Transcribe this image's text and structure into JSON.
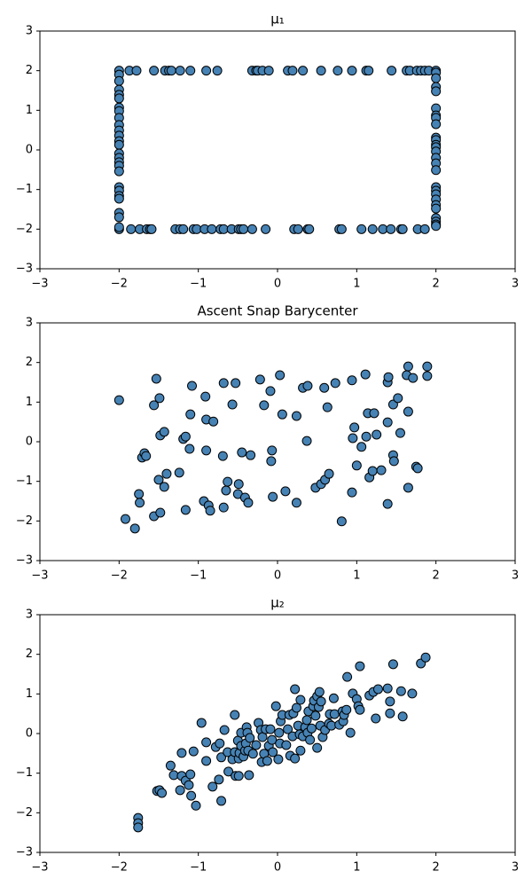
{
  "chart_data": [
    {
      "type": "scatter",
      "title": "μ₁",
      "color": "#4682b4",
      "edgecolor": "#000000",
      "xlim": [
        -3,
        3
      ],
      "ylim": [
        -3,
        3
      ],
      "xticks": [
        {
          "value": -3,
          "label": "−3"
        },
        {
          "value": -2,
          "label": "−2"
        },
        {
          "value": -1,
          "label": "−1"
        },
        0,
        1,
        2,
        3
      ],
      "yticks": [
        {
          "value": -3,
          "label": "−3"
        },
        {
          "value": -2,
          "label": "−2"
        },
        {
          "value": -1,
          "label": "−1"
        },
        0,
        1,
        2,
        3
      ],
      "x": [
        -2.0,
        -1.87,
        -1.78,
        -1.56,
        -1.42,
        -1.37,
        -1.34,
        -1.23,
        -1.1,
        -0.9,
        -0.76,
        -0.32,
        -0.27,
        -0.25,
        -0.19,
        -0.11,
        0.13,
        0.19,
        0.32,
        0.55,
        0.76,
        0.94,
        1.12,
        1.15,
        1.44,
        1.63,
        1.67,
        1.76,
        1.81,
        1.86,
        1.91,
        2.0,
        -2.0,
        -1.85,
        -1.74,
        -1.65,
        -1.61,
        -1.59,
        -1.29,
        -1.23,
        -1.19,
        -1.06,
        -1.02,
        -0.92,
        -0.83,
        -0.72,
        -0.68,
        -0.58,
        -0.49,
        -0.46,
        -0.43,
        -0.32,
        -0.15,
        0.21,
        0.26,
        0.38,
        0.4,
        0.78,
        0.81,
        1.06,
        1.2,
        1.33,
        1.43,
        1.56,
        1.58,
        1.77,
        1.86,
        -2,
        -2,
        -2,
        -2,
        -2,
        -2,
        -2,
        -2,
        -2,
        -2,
        -2,
        -2,
        -2,
        -2,
        -2,
        -2,
        -2,
        -2,
        -2,
        -2,
        -2,
        -2,
        -2,
        -2,
        -2,
        2,
        2,
        2,
        2,
        2,
        2,
        2,
        2,
        2,
        2,
        2,
        2,
        2,
        2,
        2,
        2,
        2,
        2,
        2,
        2,
        2,
        2,
        2,
        2,
        2,
        2
      ],
      "values": [
        2,
        2,
        2,
        2,
        2,
        2,
        2,
        2,
        2,
        2,
        2,
        2,
        2,
        2,
        2,
        2,
        2,
        2,
        2,
        2,
        2,
        2,
        2,
        2,
        2,
        2,
        2,
        2,
        2,
        2,
        2,
        2,
        -2,
        -2,
        -2,
        -2,
        -2,
        -2,
        -2,
        -2,
        -2,
        -2,
        -2,
        -2,
        -2,
        -2,
        -2,
        -2,
        -2,
        -2,
        -2,
        -2,
        -2,
        -2,
        -2,
        -2,
        -2,
        -2,
        -2,
        -2,
        -2,
        -2,
        -2,
        -2,
        -2,
        -2,
        -2,
        1.9,
        1.74,
        1.52,
        1.39,
        1.3,
        1.07,
        0.98,
        0.81,
        0.63,
        0.49,
        0.36,
        0.22,
        0.13,
        -0.09,
        -0.2,
        -0.31,
        -0.4,
        -0.54,
        -0.94,
        -1.03,
        -1.16,
        -1.23,
        -1.59,
        -1.7,
        -1.95,
        1.95,
        1.81,
        1.59,
        1.48,
        1.05,
        0.87,
        0.81,
        0.65,
        0.31,
        0.25,
        0.13,
        0.07,
        -0.04,
        -0.2,
        -0.34,
        -0.51,
        -0.94,
        -1.03,
        -1.12,
        -1.25,
        -1.39,
        -1.48,
        -1.72,
        -1.81,
        -1.88,
        -1.92
      ]
    },
    {
      "type": "scatter",
      "title": "Ascent Snap Barycenter",
      "color": "#4682b4",
      "edgecolor": "#000000",
      "xlim": [
        -3,
        3
      ],
      "ylim": [
        -3,
        3
      ],
      "xticks": [
        {
          "value": -3,
          "label": "−3"
        },
        {
          "value": -2,
          "label": "−2"
        },
        {
          "value": -1,
          "label": "−1"
        },
        0,
        1,
        2,
        3
      ],
      "yticks": [
        {
          "value": -3,
          "label": "−3"
        },
        {
          "value": -2,
          "label": "−2"
        },
        {
          "value": -1,
          "label": "−1"
        },
        0,
        1,
        2,
        3
      ],
      "x": [
        -2.0,
        -1.92,
        -1.8,
        -1.75,
        -1.74,
        -1.71,
        -1.68,
        -1.66,
        -1.56,
        -1.56,
        -1.53,
        -1.5,
        -1.49,
        -1.48,
        -1.48,
        -1.43,
        -1.43,
        -1.4,
        -1.24,
        -1.19,
        -1.16,
        -1.16,
        -1.11,
        -1.1,
        -1.08,
        -0.93,
        -0.91,
        -0.9,
        -0.9,
        -0.87,
        -0.85,
        -0.81,
        -0.69,
        -0.68,
        -0.68,
        -0.65,
        -0.63,
        -0.57,
        -0.53,
        -0.5,
        -0.49,
        -0.45,
        -0.41,
        -0.37,
        -0.34,
        -0.22,
        -0.17,
        -0.09,
        -0.07,
        -0.08,
        -0.06,
        0.03,
        0.06,
        0.1,
        0.24,
        0.24,
        0.32,
        0.37,
        0.38,
        0.48,
        0.55,
        0.59,
        0.6,
        0.63,
        0.65,
        0.73,
        0.81,
        0.94,
        0.94,
        0.95,
        0.97,
        1.0,
        1.06,
        1.11,
        1.12,
        1.14,
        1.16,
        1.2,
        1.22,
        1.25,
        1.31,
        1.39,
        1.39,
        1.39,
        1.4,
        1.46,
        1.46,
        1.47,
        1.52,
        1.55,
        1.63,
        1.65,
        1.65,
        1.65,
        1.71,
        1.75,
        1.77,
        1.89,
        1.89
      ],
      "values": [
        1.05,
        -1.95,
        -2.19,
        -1.32,
        -1.54,
        -0.4,
        -0.29,
        -0.36,
        -1.88,
        0.92,
        1.59,
        -0.96,
        1.1,
        -1.79,
        0.16,
        0.25,
        -1.14,
        -0.81,
        -0.78,
        0.07,
        0.13,
        -1.72,
        -0.18,
        0.69,
        1.41,
        -1.5,
        1.14,
        0.56,
        -0.22,
        -1.61,
        -1.74,
        0.51,
        -0.36,
        1.48,
        -1.66,
        -1.23,
        -1.01,
        0.94,
        1.48,
        -1.32,
        -1.07,
        -0.27,
        -1.41,
        -1.54,
        -0.34,
        1.57,
        0.92,
        1.28,
        -0.22,
        -0.49,
        -1.39,
        1.68,
        0.69,
        -1.25,
        0.65,
        -1.54,
        1.36,
        0.02,
        1.41,
        -1.16,
        -1.07,
        1.36,
        -0.96,
        0.87,
        -0.81,
        1.48,
        -2.01,
        1.55,
        -1.28,
        0.09,
        0.36,
        -0.6,
        -0.13,
        1.7,
        0.13,
        0.72,
        -0.9,
        -0.74,
        0.72,
        0.18,
        -0.72,
        0.49,
        -1.57,
        1.5,
        1.63,
        0.94,
        -0.34,
        -0.49,
        1.1,
        0.22,
        1.68,
        0.76,
        -1.16,
        1.9,
        1.61,
        -0.63,
        -0.67,
        1.9,
        1.66
      ]
    },
    {
      "type": "scatter",
      "title": "μ₂",
      "color": "#4682b4",
      "edgecolor": "#000000",
      "xlim": [
        -3,
        3
      ],
      "ylim": [
        -3,
        3
      ],
      "xticks": [
        {
          "value": -3,
          "label": "−3"
        },
        {
          "value": -2,
          "label": "−2"
        },
        {
          "value": -1,
          "label": "−1"
        },
        0,
        1,
        2,
        3
      ],
      "yticks": [
        {
          "value": -3,
          "label": "−3"
        },
        {
          "value": -2,
          "label": "−2"
        },
        {
          "value": -1,
          "label": "−1"
        },
        0,
        1,
        2,
        3
      ],
      "x": [
        -1.76,
        -1.76,
        -1.76,
        -1.52,
        -1.49,
        -1.46,
        -1.35,
        -1.31,
        -1.23,
        -1.21,
        -1.21,
        -1.16,
        -1.12,
        -1.1,
        -1.09,
        -1.06,
        -1.03,
        -0.96,
        -0.9,
        -0.9,
        -0.82,
        -0.78,
        -0.74,
        -0.73,
        -0.71,
        -0.71,
        -0.67,
        -0.63,
        -0.62,
        -0.57,
        -0.54,
        -0.54,
        -0.53,
        -0.5,
        -0.49,
        -0.49,
        -0.48,
        -0.46,
        -0.46,
        -0.43,
        -0.41,
        -0.4,
        -0.39,
        -0.38,
        -0.37,
        -0.36,
        -0.35,
        -0.31,
        -0.27,
        -0.24,
        -0.21,
        -0.2,
        -0.19,
        -0.17,
        -0.15,
        -0.13,
        -0.11,
        -0.09,
        -0.07,
        -0.06,
        -0.02,
        0.01,
        0.02,
        0.03,
        0.04,
        0.06,
        0.11,
        0.13,
        0.15,
        0.16,
        0.19,
        0.2,
        0.22,
        0.22,
        0.24,
        0.26,
        0.28,
        0.29,
        0.29,
        0.32,
        0.35,
        0.37,
        0.38,
        0.39,
        0.41,
        0.43,
        0.45,
        0.46,
        0.48,
        0.5,
        0.5,
        0.52,
        0.53,
        0.54,
        0.55,
        0.57,
        0.6,
        0.65,
        0.66,
        0.68,
        0.71,
        0.72,
        0.78,
        0.82,
        0.83,
        0.84,
        0.87,
        0.88,
        0.92,
        0.95,
        1.0,
        1.02,
        1.04,
        1.04,
        1.16,
        1.21,
        1.24,
        1.27,
        1.39,
        1.42,
        1.42,
        1.46,
        1.56,
        1.58,
        1.7,
        1.81,
        1.87
      ],
      "values": [
        -2.13,
        -2.26,
        -2.37,
        -1.45,
        -1.43,
        -1.5,
        -0.81,
        -1.05,
        -1.43,
        -0.49,
        -1.07,
        -1.19,
        -1.3,
        -1.03,
        -1.57,
        -0.45,
        -1.82,
        0.27,
        -0.69,
        -0.22,
        -1.34,
        -0.34,
        -1.16,
        -0.25,
        -1.7,
        -0.6,
        0.09,
        -0.47,
        -0.96,
        -0.65,
        0.47,
        -0.47,
        -1.07,
        -0.18,
        -0.63,
        -1.07,
        -0.49,
        -0.31,
        0.02,
        -0.58,
        -0.43,
        -0.25,
        0.16,
        0.02,
        -0.43,
        -1.05,
        -0.11,
        -0.51,
        -0.29,
        0.27,
        0.09,
        -0.72,
        -0.09,
        -0.51,
        0.11,
        -0.69,
        -0.31,
        0.11,
        -0.16,
        -0.47,
        0.69,
        -0.65,
        0.02,
        -0.25,
        0.31,
        0.47,
        -0.29,
        0.11,
        0.47,
        -0.56,
        -0.07,
        0.51,
        1.12,
        -0.63,
        0.65,
        0.2,
        -0.02,
        -0.43,
        0.85,
        -0.07,
        0.16,
        0.34,
        0.02,
        0.56,
        -0.16,
        0.13,
        0.69,
        0.83,
        0.45,
        -0.36,
        0.94,
        0.67,
        1.05,
        0.2,
        0.81,
        -0.09,
        0.09,
        0.25,
        0.49,
        0.2,
        0.89,
        0.49,
        0.22,
        0.56,
        0.31,
        0.47,
        0.6,
        1.43,
        0.02,
        1.01,
        0.87,
        0.69,
        1.7,
        0.6,
        0.96,
        1.05,
        0.38,
        1.12,
        1.14,
        0.81,
        0.51,
        1.75,
        1.07,
        0.43,
        1.01,
        1.77,
        1.92
      ]
    }
  ]
}
